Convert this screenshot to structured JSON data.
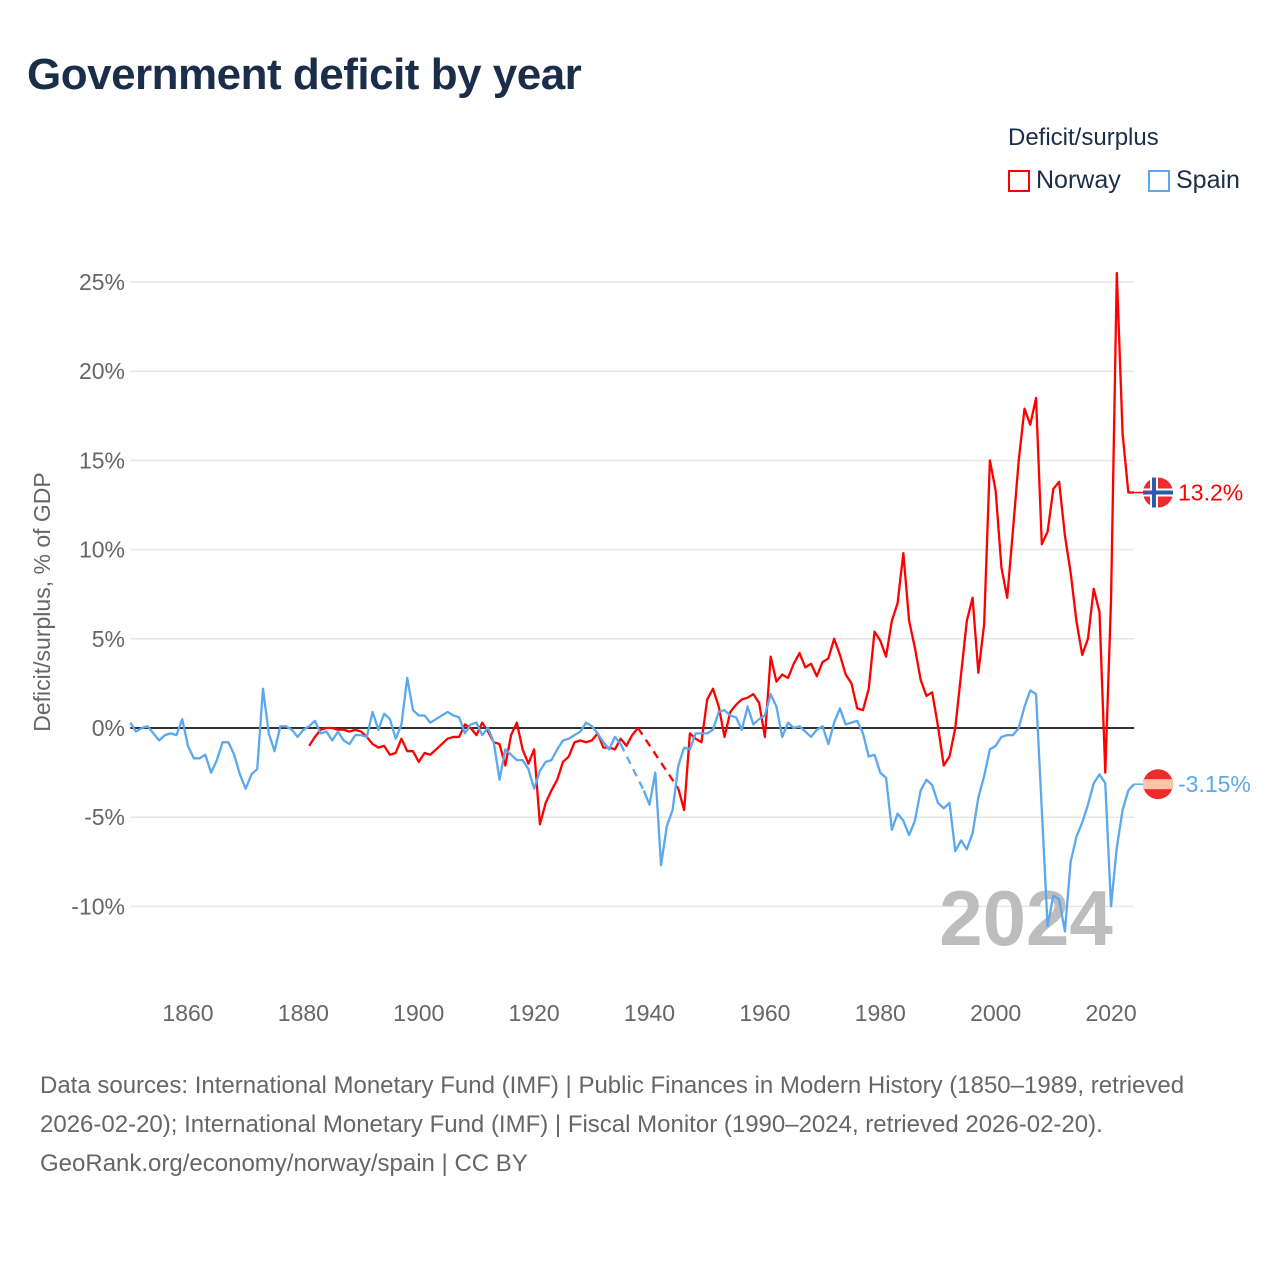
{
  "title": "Government deficit by year",
  "legend": {
    "title": "Deficit/surplus",
    "items": [
      {
        "name": "Norway",
        "color": "#ff0000"
      },
      {
        "name": "Spain",
        "color": "#5ba8ec"
      }
    ]
  },
  "chart_data": {
    "type": "line",
    "title": "Government deficit by year",
    "xlabel": "",
    "ylabel": "Deficit/surplus, % of GDP",
    "xlim": [
      1850,
      2024
    ],
    "ylim": [
      -10,
      25
    ],
    "xticks": [
      1860,
      1880,
      1900,
      1920,
      1940,
      1960,
      1980,
      2000,
      2020
    ],
    "yticks": [
      {
        "v": 25,
        "label": "25%"
      },
      {
        "v": 20,
        "label": "20%"
      },
      {
        "v": 15,
        "label": "15%"
      },
      {
        "v": 10,
        "label": "10%"
      },
      {
        "v": 5,
        "label": "5%"
      },
      {
        "v": 0,
        "label": "0%"
      },
      {
        "v": -5,
        "label": "-5%"
      },
      {
        "v": -10,
        "label": "-10%"
      }
    ],
    "current_year": "2024",
    "legend_position": "top-right",
    "series": [
      {
        "name": "Norway",
        "color": "#ff0000",
        "start": 1881,
        "end_label": "13.2%",
        "values": [
          -1.0,
          -0.5,
          -0.1,
          0.0,
          0.0,
          -0.1,
          -0.1,
          -0.2,
          -0.1,
          -0.2,
          -0.5,
          -0.9,
          -1.1,
          -1.0,
          -1.5,
          -1.4,
          -0.6,
          -1.3,
          -1.3,
          -1.9,
          -1.4,
          -1.5,
          -1.2,
          -0.9,
          -0.6,
          -0.5,
          -0.5,
          0.2,
          0.0,
          -0.4,
          0.3,
          -0.2,
          -0.8,
          -0.9,
          -2.1,
          -0.4,
          0.3,
          -1.2,
          -2.0,
          -1.2,
          -5.4,
          -4.2,
          -3.5,
          -2.9,
          -1.9,
          -1.6,
          -0.8,
          -0.7,
          -0.8,
          -0.7,
          -0.3,
          -1.1,
          -1.1,
          -1.2,
          -0.6,
          -1.0,
          -0.4,
          0.0,
          null,
          null,
          null,
          null,
          null,
          null,
          -3.4,
          -4.6,
          -0.3,
          -0.6,
          -0.8,
          1.6,
          2.2,
          1.2,
          -0.5,
          0.9,
          1.3,
          1.6,
          1.7,
          1.9,
          1.4,
          -0.5,
          4.0,
          2.6,
          3.0,
          2.8,
          3.6,
          4.2,
          3.4,
          3.6,
          2.9,
          3.7,
          3.9,
          5.0,
          4.1,
          3.0,
          2.5,
          1.1,
          1.0,
          2.2,
          5.4,
          4.9,
          4.0,
          6.0,
          7.0,
          9.8,
          6.0,
          4.5,
          2.7,
          1.8,
          2.0,
          0.1,
          -2.1,
          -1.6,
          0.0,
          3.0,
          6.0,
          7.3,
          3.1,
          5.8,
          15.0,
          13.3,
          9.0,
          7.3,
          11.1,
          15.0,
          17.9,
          17.0,
          18.5,
          10.3,
          11.0,
          13.4,
          13.8,
          10.8,
          8.7,
          6.0,
          4.1,
          5.0,
          7.8,
          6.5,
          -2.5,
          7.2,
          25.5,
          16.5,
          13.2,
          13.2
        ]
      },
      {
        "name": "Spain",
        "color": "#5ba8ec",
        "start": 1850,
        "end_label": "-3.15%",
        "values": [
          0.3,
          -0.2,
          0.0,
          0.1,
          -0.3,
          -0.7,
          -0.4,
          -0.3,
          -0.4,
          0.5,
          -1.0,
          -1.7,
          -1.7,
          -1.5,
          -2.5,
          -1.8,
          -0.8,
          -0.8,
          -1.5,
          -2.6,
          -3.4,
          -2.6,
          -2.3,
          2.2,
          -0.3,
          -1.3,
          0.1,
          0.1,
          -0.1,
          -0.5,
          -0.1,
          0.1,
          0.4,
          -0.3,
          -0.2,
          -0.7,
          -0.2,
          -0.7,
          -0.9,
          -0.4,
          -0.4,
          -0.5,
          0.9,
          -0.1,
          0.8,
          0.5,
          -0.6,
          0.2,
          2.8,
          1.0,
          0.7,
          0.7,
          0.3,
          0.5,
          0.7,
          0.9,
          0.7,
          0.6,
          -0.3,
          0.2,
          0.3,
          -0.4,
          0.0,
          -0.8,
          -2.9,
          -1.2,
          -1.5,
          -1.8,
          -1.8,
          -2.3,
          -3.4,
          -2.4,
          -1.9,
          -1.8,
          -1.2,
          -0.7,
          -0.6,
          -0.4,
          -0.2,
          0.3,
          0.1,
          -0.3,
          -0.8,
          -1.2,
          -0.5,
          -0.9,
          null,
          null,
          null,
          -3.5,
          -4.3,
          -2.5,
          -7.7,
          -5.5,
          -4.6,
          -2.1,
          -1.1,
          -1.2,
          -0.3,
          -0.3,
          -0.3,
          -0.1,
          0.9,
          1.0,
          0.7,
          0.6,
          -0.1,
          1.2,
          0.2,
          0.5,
          0.7,
          1.9,
          1.2,
          -0.5,
          0.3,
          0.0,
          0.1,
          -0.2,
          -0.5,
          -0.1,
          0.1,
          -0.9,
          0.3,
          1.1,
          0.2,
          0.3,
          0.4,
          -0.3,
          -1.6,
          -1.5,
          -2.5,
          -2.8,
          -5.7,
          -4.8,
          -5.2,
          -6.0,
          -5.2,
          -3.5,
          -2.9,
          -3.2,
          -4.2,
          -4.5,
          -4.2,
          -6.9,
          -6.3,
          -6.8,
          -5.9,
          -3.9,
          -2.7,
          -1.2,
          -1.0,
          -0.5,
          -0.4,
          -0.4,
          0.0,
          1.2,
          2.1,
          1.9,
          -4.6,
          -11.1,
          -9.4,
          -9.6,
          -11.4,
          -7.5,
          -6.1,
          -5.3,
          -4.3,
          -3.1,
          -2.6,
          -3.1,
          -10.0,
          -6.7,
          -4.6,
          -3.5,
          -3.15
        ]
      }
    ]
  },
  "footer": {
    "sources": "Data sources: International Monetary Fund (IMF) | Public Finances in Modern History (1850–1989, retrieved 2026-02-20); International Monetary Fund (IMF) | Fiscal Monitor (1990–2024, retrieved 2026-02-20).",
    "credit": "GeoRank.org/economy/norway/spain | CC BY"
  }
}
